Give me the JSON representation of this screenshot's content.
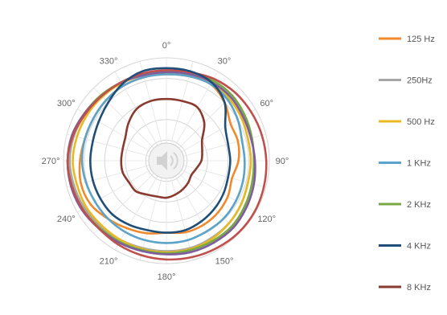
{
  "chart_data": {
    "type": "polar-line",
    "title": "",
    "angular_ticks": [
      "0°",
      "30°",
      "60°",
      "90°",
      "120°",
      "150°",
      "180°",
      "210°",
      "240°",
      "270°",
      "300°",
      "330°"
    ],
    "radial_range": [
      0,
      1
    ],
    "grid": true,
    "legend_position": "right",
    "center_icon": "speaker-icon",
    "angles_deg": [
      0,
      15,
      30,
      45,
      60,
      75,
      90,
      105,
      120,
      135,
      150,
      165,
      180,
      195,
      210,
      225,
      240,
      255,
      270,
      285,
      300,
      315,
      330,
      345
    ],
    "series": [
      {
        "name": "125 Hz",
        "color": "#F0892B",
        "values": [
          0.84,
          0.85,
          0.86,
          0.8,
          0.72,
          0.72,
          0.7,
          0.66,
          0.69,
          0.71,
          0.72,
          0.72,
          0.7,
          0.73,
          0.76,
          0.8,
          0.85,
          0.86,
          0.84,
          0.82,
          0.82,
          0.83,
          0.84,
          0.84
        ]
      },
      {
        "name": "250Hz",
        "color": "#A6A6A6",
        "values": [
          0.86,
          0.87,
          0.88,
          0.86,
          0.84,
          0.82,
          0.82,
          0.82,
          0.84,
          0.86,
          0.87,
          0.88,
          0.88,
          0.88,
          0.89,
          0.9,
          0.92,
          0.93,
          0.94,
          0.93,
          0.91,
          0.89,
          0.88,
          0.87
        ]
      },
      {
        "name": "500 Hz",
        "color": "#E8B923",
        "values": [
          0.86,
          0.87,
          0.88,
          0.86,
          0.84,
          0.82,
          0.82,
          0.82,
          0.84,
          0.86,
          0.88,
          0.89,
          0.89,
          0.89,
          0.89,
          0.89,
          0.9,
          0.9,
          0.91,
          0.9,
          0.89,
          0.88,
          0.87,
          0.86
        ]
      },
      {
        "name": "1 KHz",
        "color": "#5BA3C8",
        "values": [
          0.84,
          0.85,
          0.86,
          0.84,
          0.8,
          0.76,
          0.76,
          0.77,
          0.78,
          0.79,
          0.79,
          0.8,
          0.8,
          0.8,
          0.8,
          0.8,
          0.8,
          0.81,
          0.82,
          0.82,
          0.82,
          0.83,
          0.84,
          0.84
        ]
      },
      {
        "name": "2 KHz",
        "color": "#78A843",
        "values": [
          0.87,
          0.88,
          0.9,
          0.9,
          0.88,
          0.86,
          0.85,
          0.86,
          0.88,
          0.9,
          0.9,
          0.9,
          0.9,
          0.9,
          0.91,
          0.92,
          0.94,
          0.95,
          0.96,
          0.95,
          0.92,
          0.9,
          0.88,
          0.87
        ]
      },
      {
        "name": "4 KHz",
        "color": "#1F4E79",
        "values": [
          0.9,
          0.9,
          0.88,
          0.8,
          0.66,
          0.62,
          0.62,
          0.62,
          0.64,
          0.66,
          0.68,
          0.7,
          0.7,
          0.7,
          0.72,
          0.74,
          0.74,
          0.74,
          0.74,
          0.74,
          0.76,
          0.8,
          0.86,
          0.9
        ]
      },
      {
        "name": "8 KHz",
        "color": "#8A3A2E",
        "values": [
          0.6,
          0.6,
          0.6,
          0.52,
          0.4,
          0.36,
          0.34,
          0.3,
          0.28,
          0.3,
          0.32,
          0.34,
          0.36,
          0.36,
          0.38,
          0.42,
          0.42,
          0.44,
          0.44,
          0.44,
          0.46,
          0.52,
          0.58,
          0.6
        ]
      },
      {
        "name": "",
        "color": "#C0504D",
        "values": [
          0.88,
          0.89,
          0.92,
          0.94,
          0.95,
          0.96,
          0.97,
          0.98,
          0.99,
          0.99,
          0.98,
          0.97,
          0.96,
          0.95,
          0.94,
          0.93,
          0.94,
          0.95,
          0.96,
          0.94,
          0.91,
          0.89,
          0.88,
          0.88
        ]
      },
      {
        "name": "",
        "color": "#7E5C9E",
        "values": [
          0.86,
          0.87,
          0.88,
          0.88,
          0.86,
          0.85,
          0.86,
          0.88,
          0.9,
          0.92,
          0.92,
          0.92,
          0.91,
          0.91,
          0.92,
          0.93,
          0.95,
          0.96,
          0.96,
          0.95,
          0.92,
          0.89,
          0.88,
          0.86
        ]
      }
    ]
  }
}
